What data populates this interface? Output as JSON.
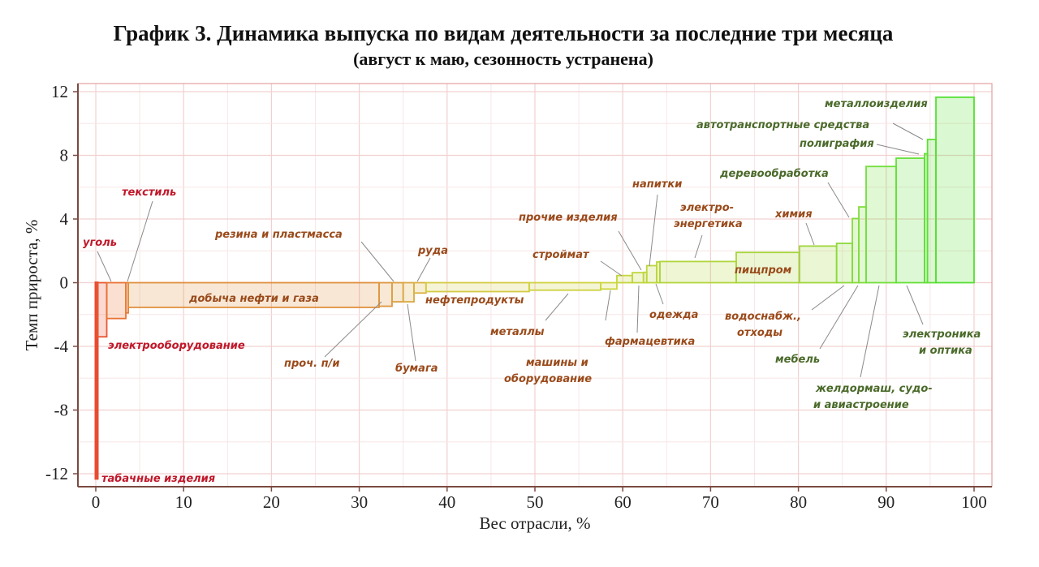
{
  "chart_data": {
    "type": "bar",
    "variant": "variable-width bar (weight on x, growth on y)",
    "title": "График 3. Динамика выпуска по видам деятельности за последние три месяца",
    "subtitle": "(август к маю, сезонность устранена)",
    "xlabel": "Вес отрасли, %",
    "ylabel": "Темп прироста, %",
    "xlim": [
      0,
      100
    ],
    "ylim": [
      -12,
      12
    ],
    "xticks": [
      0,
      10,
      20,
      30,
      40,
      50,
      60,
      70,
      80,
      90,
      100
    ],
    "yticks": [
      -12,
      -8,
      -4,
      0,
      4,
      8,
      12
    ],
    "grid": true,
    "colors": {
      "negative_start": "#e84a30",
      "middle": "#d8d040",
      "positive_end": "#4ee030",
      "label_red": "#c0182a",
      "label_brown": "#9a4a1a",
      "label_green": "#4a6a2a"
    },
    "bars": [
      {
        "name": "табачные изделия",
        "x_start": 0.0,
        "x_end": 0.18,
        "value": -12.3
      },
      {
        "name": "электрооборудование",
        "x_start": 0.18,
        "x_end": 1.25,
        "value": -3.4
      },
      {
        "name": "уголь",
        "x_start": 1.25,
        "x_end": 3.42,
        "value": -2.25
      },
      {
        "name": "текстиль",
        "x_start": 3.42,
        "x_end": 3.7,
        "value": -1.9
      },
      {
        "name": "добыча нефти и газа",
        "x_start": 3.7,
        "x_end": 32.26,
        "value": -1.55
      },
      {
        "name": "проч. п/и",
        "x_start": 32.26,
        "x_end": 33.73,
        "value": -1.48
      },
      {
        "name": "резина и пластмасса",
        "x_start": 33.73,
        "x_end": 35.0,
        "value": -1.2
      },
      {
        "name": "бумага",
        "x_start": 35.0,
        "x_end": 36.23,
        "value": -1.2
      },
      {
        "name": "руда",
        "x_start": 36.23,
        "x_end": 37.6,
        "value": -0.65
      },
      {
        "name": "нефтепродукты",
        "x_start": 37.6,
        "x_end": 49.35,
        "value": -0.56
      },
      {
        "name": "металлы",
        "x_start": 49.35,
        "x_end": 57.49,
        "value": -0.47
      },
      {
        "name": "машины и оборудование",
        "x_start": 57.49,
        "x_end": 59.33,
        "value": -0.4
      },
      {
        "name": "строймат",
        "x_start": 59.33,
        "x_end": 61.09,
        "value": 0.45
      },
      {
        "name": "фармацевтика",
        "x_start": 61.09,
        "x_end": 62.36,
        "value": 0.63
      },
      {
        "name": "прочие изделия",
        "x_start": 62.36,
        "x_end": 62.73,
        "value": 0.65
      },
      {
        "name": "напитки",
        "x_start": 62.73,
        "x_end": 63.86,
        "value": 1.07
      },
      {
        "name": "одежда",
        "x_start": 63.86,
        "x_end": 64.23,
        "value": 1.3
      },
      {
        "name": "электро-энергетика",
        "x_start": 64.23,
        "x_end": 72.92,
        "value": 1.33
      },
      {
        "name": "пищпром",
        "x_start": 72.92,
        "x_end": 80.13,
        "value": 1.9
      },
      {
        "name": "химия",
        "x_start": 80.13,
        "x_end": 84.35,
        "value": 2.3
      },
      {
        "name": "водоснабж., отходы",
        "x_start": 84.35,
        "x_end": 86.14,
        "value": 2.47
      },
      {
        "name": "деревообработка",
        "x_start": 86.14,
        "x_end": 86.88,
        "value": 4.03
      },
      {
        "name": "мебель",
        "x_start": 86.88,
        "x_end": 87.71,
        "value": 4.76
      },
      {
        "name": "желдормаш, судо- и авиастроение",
        "x_start": 87.71,
        "x_end": 91.13,
        "value": 7.3
      },
      {
        "name": "электроника и оптика",
        "x_start": 91.13,
        "x_end": 94.36,
        "value": 7.82
      },
      {
        "name": "полиграфия",
        "x_start": 94.36,
        "x_end": 94.7,
        "value": 8.1
      },
      {
        "name": "автотранспортные средства",
        "x_start": 94.7,
        "x_end": 95.66,
        "value": 9.0
      },
      {
        "name": "металлоизделия",
        "x_start": 95.66,
        "x_end": 100.0,
        "value": 11.65
      }
    ]
  }
}
